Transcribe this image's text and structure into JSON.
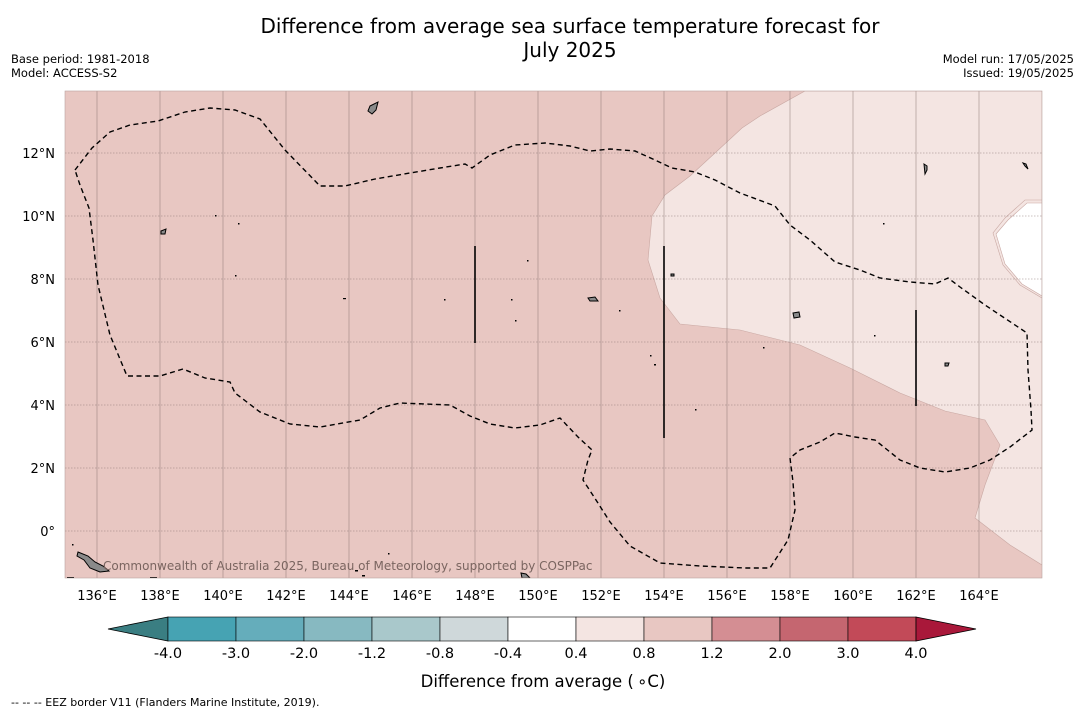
{
  "title_line1": "Difference from average sea surface temperature forecast for",
  "title_line2": "July 2025",
  "base_period": "Base period: 1981-2018",
  "model": "Model: ACCESS-S2",
  "model_run": "Model run: 17/05/2025",
  "issued": "Issued: 19/05/2025",
  "copyright": "Commonwealth of Australia 2025, Bureau of Meteorology, supported by COSPPac",
  "footnote": "--  --  -- EEZ border V11 (Flanders Marine Institute, 2019).",
  "lon_ticks": [
    "136°E",
    "138°E",
    "140°E",
    "142°E",
    "144°E",
    "146°E",
    "148°E",
    "150°E",
    "152°E",
    "154°E",
    "156°E",
    "158°E",
    "160°E",
    "162°E",
    "164°E"
  ],
  "lat_ticks": [
    "12°N",
    "10°N",
    "8°N",
    "6°N",
    "4°N",
    "2°N",
    "0°"
  ],
  "colorbar": {
    "title": "Difference from average ( ∘C)",
    "tick_labels": [
      "-4.0",
      "-3.0",
      "-2.0",
      "-1.2",
      "-0.8",
      "-0.4",
      "0.4",
      "0.8",
      "1.2",
      "2.0",
      "3.0",
      "4.0"
    ],
    "colors": [
      "#46a3b3",
      "#65adbb",
      "#87b9c1",
      "#a9c8cb",
      "#cfd8da",
      "#ffffff",
      "#f4e5e2",
      "#e8c7c2",
      "#d48e93",
      "#c56670",
      "#c24a58"
    ],
    "under_color": "#3a7e82",
    "over_color": "#a9183a"
  },
  "legend_colors": {
    "anomaly_0.8_1.2": "#e8c7c2",
    "anomaly_0.4_0.8": "#f4e5e2",
    "land": "#8a8a8a"
  }
}
